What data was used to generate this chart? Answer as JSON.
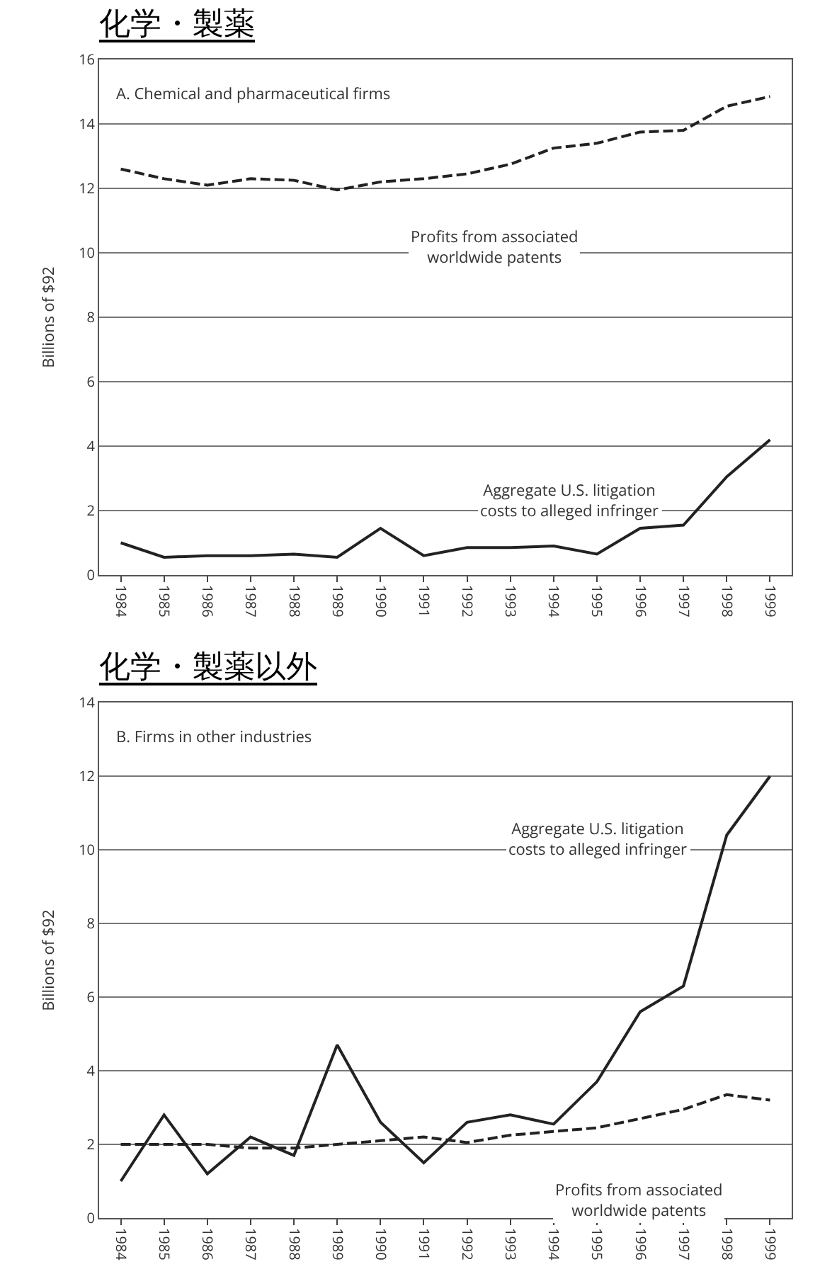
{
  "chart_data": [
    {
      "type": "line",
      "title": "化学・製薬",
      "ylabel": "Billions of $92",
      "categories": [
        "1984",
        "1985",
        "1986",
        "1987",
        "1988",
        "1989",
        "1990",
        "1991",
        "1992",
        "1993",
        "1994",
        "1995",
        "1996",
        "1997",
        "1998",
        "1999"
      ],
      "series": [
        {
          "color": "#222222",
          "line_style": "dashed",
          "values": [
            12.6,
            12.3,
            12.1,
            12.3,
            12.25,
            11.95,
            12.2,
            12.3,
            12.45,
            12.75,
            13.25,
            13.4,
            13.75,
            13.8,
            14.55,
            14.85
          ]
        },
        {
          "color": "#222222",
          "line_style": "solid",
          "values": [
            1.0,
            0.55,
            0.6,
            0.6,
            0.65,
            0.55,
            1.45,
            0.6,
            0.85,
            0.85,
            0.9,
            0.65,
            1.45,
            1.55,
            3.05,
            4.2
          ]
        }
      ],
      "ylim": [
        0,
        16
      ],
      "yticks": [
        0,
        2,
        4,
        6,
        8,
        10,
        12,
        14,
        16
      ],
      "grid": "y",
      "legend": false,
      "annotations": [
        "A. Chemical and pharmaceutical firms",
        "Profits from associated\nworldwide patents",
        "Aggregate U.S. litigation\ncosts to alleged infringer"
      ]
    },
    {
      "type": "line",
      "title": "化学・製薬以外",
      "ylabel": "Billions of $92",
      "categories": [
        "1984",
        "1985",
        "1986",
        "1987",
        "1988",
        "1989",
        "1990",
        "1991",
        "1992",
        "1993",
        "1994",
        "1995",
        "1996",
        "1997",
        "1998",
        "1999"
      ],
      "series": [
        {
          "color": "#222222",
          "line_style": "solid",
          "values": [
            1.0,
            2.8,
            1.2,
            2.2,
            1.7,
            4.7,
            2.6,
            1.5,
            2.6,
            2.8,
            2.55,
            3.7,
            5.6,
            6.3,
            10.4,
            12.0
          ]
        },
        {
          "color": "#222222",
          "line_style": "dashed",
          "values": [
            2.0,
            2.0,
            2.0,
            1.9,
            1.9,
            2.0,
            2.1,
            2.2,
            2.05,
            2.25,
            2.35,
            2.45,
            2.7,
            2.95,
            3.35,
            3.2
          ]
        }
      ],
      "ylim": [
        0,
        14
      ],
      "yticks": [
        0,
        2,
        4,
        6,
        8,
        10,
        12,
        14
      ],
      "grid": "y",
      "legend": false,
      "annotations": [
        "B. Firms in other industries",
        "Aggregate U.S. litigation\ncosts to alleged infringer",
        "Profits from associated\nworldwide patents"
      ]
    }
  ]
}
